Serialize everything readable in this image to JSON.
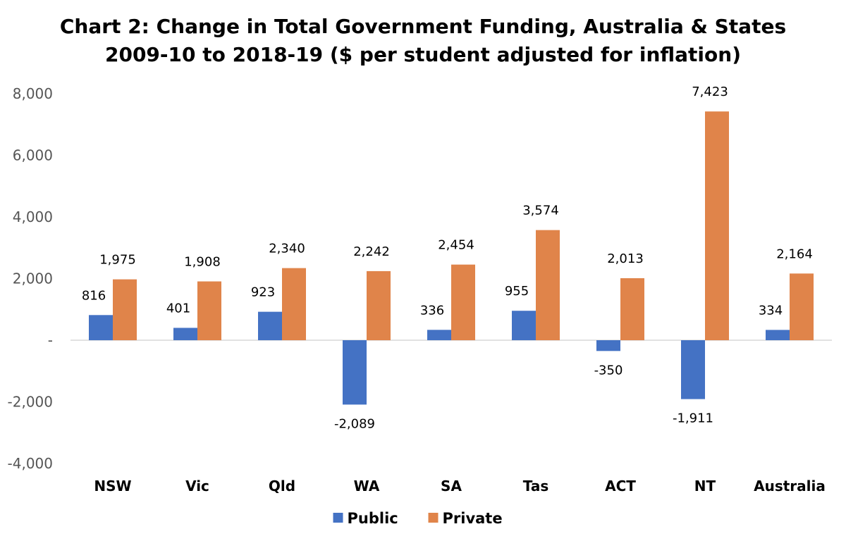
{
  "chart_data": {
    "type": "bar",
    "title": "Chart 2: Change in Total Government Funding, Australia & States",
    "subtitle": "2009-10 to 2018-19 ($ per student adjusted for inflation)",
    "categories": [
      "NSW",
      "Vic",
      "Qld",
      "WA",
      "SA",
      "Tas",
      "ACT",
      "NT",
      "Australia"
    ],
    "series": [
      {
        "name": "Public",
        "color": "#4472C4",
        "values": [
          816,
          401,
          923,
          -2089,
          336,
          955,
          -350,
          -1911,
          334
        ],
        "labels": [
          "816",
          "401",
          "923",
          "-2,089",
          "336",
          "955",
          "-350",
          "-1,911",
          "334"
        ]
      },
      {
        "name": "Private",
        "color": "#E0844A",
        "values": [
          1975,
          1908,
          2340,
          2242,
          2454,
          3574,
          2013,
          7423,
          2164
        ],
        "labels": [
          "1,975",
          "1,908",
          "2,340",
          "2,242",
          "2,454",
          "3,574",
          "2,013",
          "7,423",
          "2,164"
        ]
      }
    ],
    "ylim": [
      -4000,
      8000
    ],
    "yticks": [
      8000,
      6000,
      4000,
      2000,
      0,
      -2000,
      -4000
    ],
    "ytick_labels": [
      "8,000",
      "6,000",
      "4,000",
      "2,000",
      "-",
      "-2,000",
      "-4,000"
    ],
    "grid": false,
    "legend": "bottom-center"
  }
}
